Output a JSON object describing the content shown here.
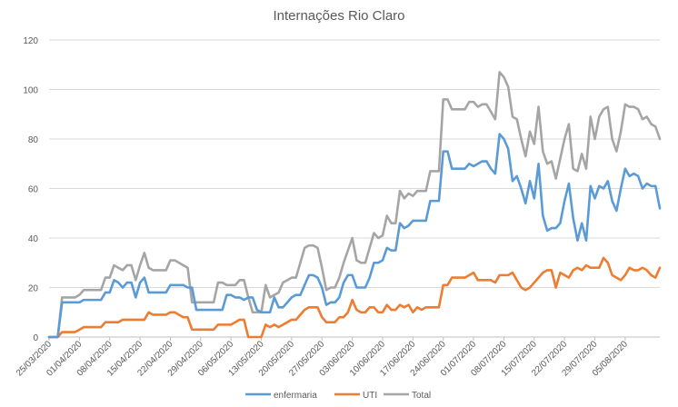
{
  "chart_data": {
    "type": "line",
    "title": "Internações Rio Claro",
    "xlabel": "",
    "ylabel": "",
    "ylim": [
      0,
      120
    ],
    "yticks": [
      0,
      20,
      40,
      60,
      80,
      100,
      120
    ],
    "grid": true,
    "legend": "bottom",
    "date_start": "2020-03-25",
    "xtick_labels": [
      "25/03/2020",
      "01/04/2020",
      "08/04/2020",
      "15/04/2020",
      "22/04/2020",
      "29/04/2020",
      "06/05/2020",
      "13/05/2020",
      "20/05/2020",
      "27/05/2020",
      "03/06/2020",
      "10/06/2020",
      "17/06/2020",
      "24/06/2020",
      "01/07/2020",
      "08/07/2020",
      "15/07/2020",
      "22/07/2020",
      "29/07/2020",
      "05/08/2020"
    ],
    "series": [
      {
        "name": "enfermaria",
        "color": "#5b9bd5",
        "values": [
          0,
          0,
          0,
          14,
          14,
          14,
          14,
          14,
          15,
          15,
          15,
          15,
          15,
          18,
          18,
          23,
          22,
          20,
          22,
          22,
          16,
          22,
          24,
          18,
          18,
          18,
          18,
          18,
          21,
          21,
          21,
          21,
          20,
          20,
          11,
          11,
          11,
          11,
          11,
          11,
          11,
          17,
          17,
          16,
          16,
          15,
          16,
          16,
          11,
          10,
          10,
          10,
          16,
          12,
          12,
          14,
          16,
          17,
          17,
          21,
          25,
          25,
          24,
          20,
          13,
          14,
          14,
          16,
          22,
          25,
          25,
          20,
          20,
          20,
          24,
          30,
          30,
          31,
          36,
          35,
          35,
          46,
          44,
          45,
          47,
          47,
          47,
          47,
          55,
          55,
          55,
          75,
          75,
          68,
          68,
          68,
          68,
          70,
          69,
          70,
          71,
          71,
          68,
          66,
          82,
          80,
          76,
          63,
          65,
          60,
          54,
          63,
          56,
          70,
          49,
          43,
          44,
          44,
          46,
          55,
          62,
          48,
          39,
          46,
          39,
          61,
          56,
          61,
          60,
          63,
          55,
          51,
          60,
          68,
          65,
          66,
          65,
          60,
          62,
          61,
          61,
          52
        ]
      },
      {
        "name": "UTI",
        "color": "#ed7d31",
        "values": [
          0,
          0,
          0,
          2,
          2,
          2,
          2,
          3,
          4,
          4,
          4,
          4,
          4,
          6,
          6,
          6,
          6,
          7,
          7,
          7,
          7,
          7,
          7,
          10,
          9,
          9,
          9,
          9,
          10,
          10,
          9,
          8,
          8,
          3,
          3,
          3,
          3,
          3,
          3,
          5,
          5,
          5,
          5,
          6,
          7,
          7,
          0,
          0,
          0,
          0,
          5,
          4,
          5,
          4,
          5,
          6,
          7,
          7,
          9,
          11,
          12,
          12,
          12,
          8,
          6,
          6,
          6,
          8,
          8,
          10,
          15,
          11,
          10,
          10,
          12,
          12,
          10,
          10,
          13,
          11,
          11,
          13,
          12,
          13,
          10,
          12,
          11,
          12,
          12,
          12,
          12,
          21,
          21,
          24,
          24,
          24,
          24,
          25,
          26,
          23,
          23,
          23,
          23,
          22,
          25,
          25,
          25,
          26,
          23,
          20,
          19,
          20,
          22,
          24,
          26,
          27,
          27,
          20,
          26,
          25,
          24,
          27,
          28,
          27,
          29,
          28,
          28,
          28,
          32,
          30,
          25,
          24,
          23,
          25,
          28,
          27,
          27,
          28,
          27,
          25,
          24,
          28
        ]
      },
      {
        "name": "Total",
        "color": "#a5a5a5",
        "values": [
          0,
          0,
          0,
          16,
          16,
          16,
          16,
          17,
          19,
          19,
          19,
          19,
          19,
          24,
          24,
          29,
          28,
          27,
          29,
          29,
          23,
          29,
          34,
          28,
          27,
          27,
          27,
          27,
          31,
          31,
          30,
          29,
          28,
          14,
          14,
          14,
          14,
          14,
          14,
          22,
          22,
          21,
          21,
          21,
          23,
          23,
          16,
          10,
          10,
          10,
          21,
          16,
          17,
          18,
          22,
          23,
          24,
          24,
          30,
          36,
          37,
          37,
          36,
          28,
          19,
          20,
          20,
          24,
          30,
          35,
          40,
          31,
          30,
          30,
          36,
          42,
          40,
          41,
          49,
          46,
          46,
          59,
          56,
          58,
          57,
          59,
          59,
          59,
          67,
          67,
          67,
          96,
          96,
          92,
          92,
          92,
          92,
          95,
          95,
          93,
          94,
          94,
          91,
          88,
          107,
          105,
          101,
          89,
          88,
          80,
          73,
          83,
          78,
          93,
          75,
          70,
          71,
          64,
          72,
          80,
          86,
          68,
          67,
          74,
          68,
          89,
          80,
          89,
          92,
          93,
          80,
          75,
          83,
          94,
          93,
          93,
          92,
          88,
          89,
          86,
          85,
          80
        ]
      }
    ]
  }
}
